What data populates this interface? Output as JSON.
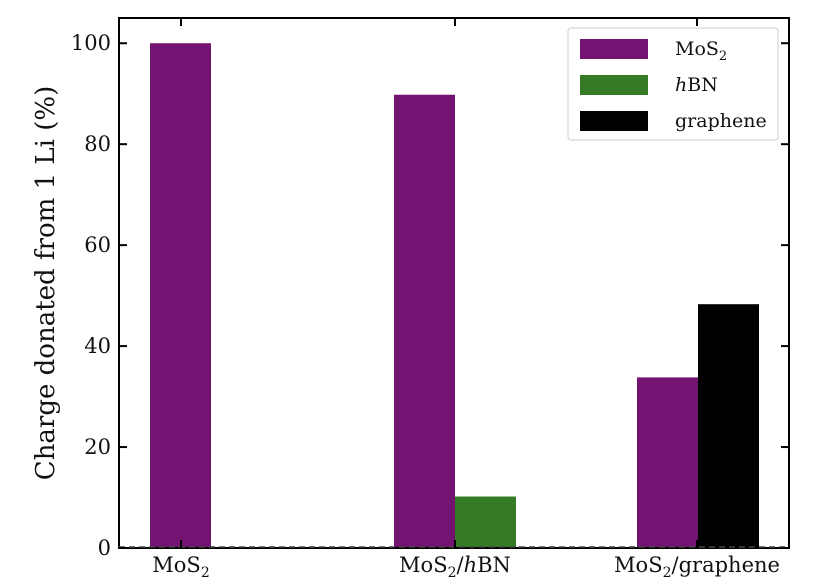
{
  "chart_data": {
    "type": "bar",
    "categories": [
      {
        "base": "MoS",
        "sub": "2",
        "rest": "",
        "italic": ""
      },
      {
        "base": "MoS",
        "sub": "2",
        "rest": "BN",
        "italic": "h",
        "slash": "/"
      },
      {
        "base": "MoS",
        "sub": "2",
        "rest": "graphene",
        "italic": "",
        "slash": "/"
      }
    ],
    "series": [
      {
        "name": "MoS2",
        "legend": {
          "base": "MoS",
          "sub": "2",
          "italic": ""
        },
        "color": "#731472",
        "values": [
          100,
          89.8,
          33.8
        ]
      },
      {
        "name": "hBN",
        "legend": {
          "base": "BN",
          "sub": "",
          "italic": "h"
        },
        "color": "#357a24",
        "values": [
          null,
          10.2,
          null
        ]
      },
      {
        "name": "graphene",
        "legend": {
          "base": "graphene",
          "sub": "",
          "italic": ""
        },
        "color": "#000000",
        "values": [
          null,
          null,
          48.3
        ]
      }
    ],
    "ylabel": "Charge donated from 1 Li (%)",
    "ylim": [
      0,
      105
    ],
    "yticks": [
      0,
      20,
      40,
      60,
      80,
      100
    ],
    "legend_position": "upper-right",
    "grid": false
  }
}
